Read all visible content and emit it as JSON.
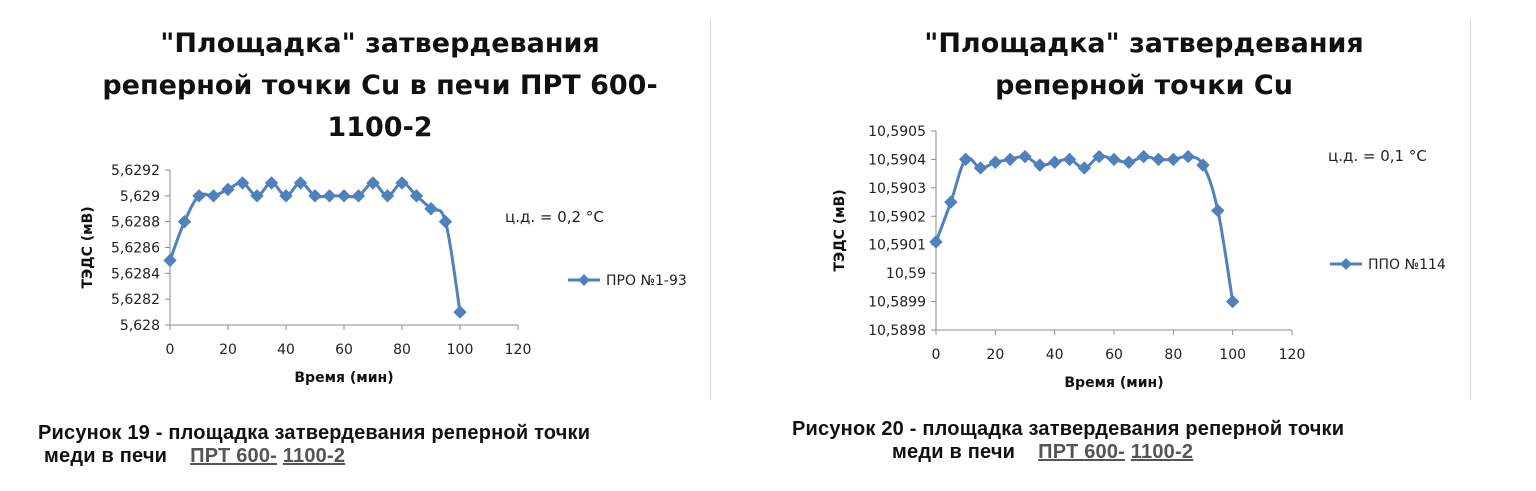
{
  "chart_data": [
    {
      "type": "line",
      "title": [
        "\"Площадка\" затвердевания",
        "реперной точки Cu в печи ПРТ 600-",
        "1100-2"
      ],
      "xlabel": "Время (мин)",
      "ylabel": "ТЭДС (мВ)",
      "xlim": [
        0,
        120
      ],
      "ylim": [
        5.628,
        5.6292
      ],
      "x_ticks": [
        0,
        20,
        40,
        60,
        80,
        100,
        120
      ],
      "x_tick_labels": [
        "0",
        "20",
        "40",
        "60",
        "80",
        "100",
        "120"
      ],
      "y_ticks": [
        5.628,
        5.6282,
        5.6284,
        5.6286,
        5.6288,
        5.629,
        5.6292
      ],
      "y_tick_labels": [
        "5,628",
        "5,6282",
        "5,6284",
        "5,6286",
        "5,6288",
        "5,629",
        "5,6292"
      ],
      "annotation": "ц.д. = 0,2 °C",
      "legend_position": "right",
      "series": [
        {
          "name": "ПРО №1-93",
          "color": "#4f81bd",
          "x": [
            0,
            5,
            10,
            15,
            20,
            25,
            30,
            35,
            40,
            45,
            50,
            55,
            60,
            65,
            70,
            75,
            80,
            85,
            90,
            95,
            100
          ],
          "y": [
            5.6285,
            5.6288,
            5.629,
            5.629,
            5.62905,
            5.6291,
            5.629,
            5.6291,
            5.629,
            5.6291,
            5.629,
            5.629,
            5.629,
            5.629,
            5.6291,
            5.629,
            5.6291,
            5.629,
            5.6289,
            5.6288,
            5.6281
          ]
        }
      ]
    },
    {
      "type": "line",
      "title": [
        "\"Площадка\" затвердевания",
        "реперной точки Cu"
      ],
      "xlabel": "Время (мин)",
      "ylabel": "ТЭДС (мВ)",
      "xlim": [
        0,
        120
      ],
      "ylim": [
        10.5898,
        10.5905
      ],
      "x_ticks": [
        0,
        20,
        40,
        60,
        80,
        100,
        120
      ],
      "x_tick_labels": [
        "0",
        "20",
        "40",
        "60",
        "80",
        "100",
        "120"
      ],
      "y_ticks": [
        10.5898,
        10.5899,
        10.59,
        10.5901,
        10.5902,
        10.5903,
        10.5904,
        10.5905
      ],
      "y_tick_labels": [
        "10,5898",
        "10,5899",
        "10,59",
        "10,5901",
        "10,5902",
        "10,5903",
        "10,5904",
        "10,5905"
      ],
      "annotation": "ц.д. = 0,1 °C",
      "legend_position": "right",
      "series": [
        {
          "name": "ППО №114",
          "color": "#4f81bd",
          "x": [
            0,
            5,
            10,
            15,
            20,
            25,
            30,
            35,
            40,
            45,
            50,
            55,
            60,
            65,
            70,
            75,
            80,
            85,
            90,
            95,
            100
          ],
          "y": [
            10.59011,
            10.59025,
            10.5904,
            10.59037,
            10.59039,
            10.5904,
            10.59041,
            10.59038,
            10.59039,
            10.5904,
            10.59037,
            10.59041,
            10.5904,
            10.59039,
            10.59041,
            10.5904,
            10.5904,
            10.59041,
            10.59038,
            10.59022,
            10.5899
          ]
        }
      ]
    }
  ],
  "captions": [
    {
      "line1": "Рисунок 19 - площадка затвердевания реперной точки",
      "line2_prefix": "меди в печи",
      "line2_link_a": "ПРТ 600-",
      "line2_link_b": "1100-2"
    },
    {
      "line1": "Рисунок 20 - площадка затвердевания реперной точки",
      "line2_prefix": "меди в печи",
      "line2_link_a": "ПРТ 600-",
      "line2_link_b": "1100-2"
    }
  ]
}
